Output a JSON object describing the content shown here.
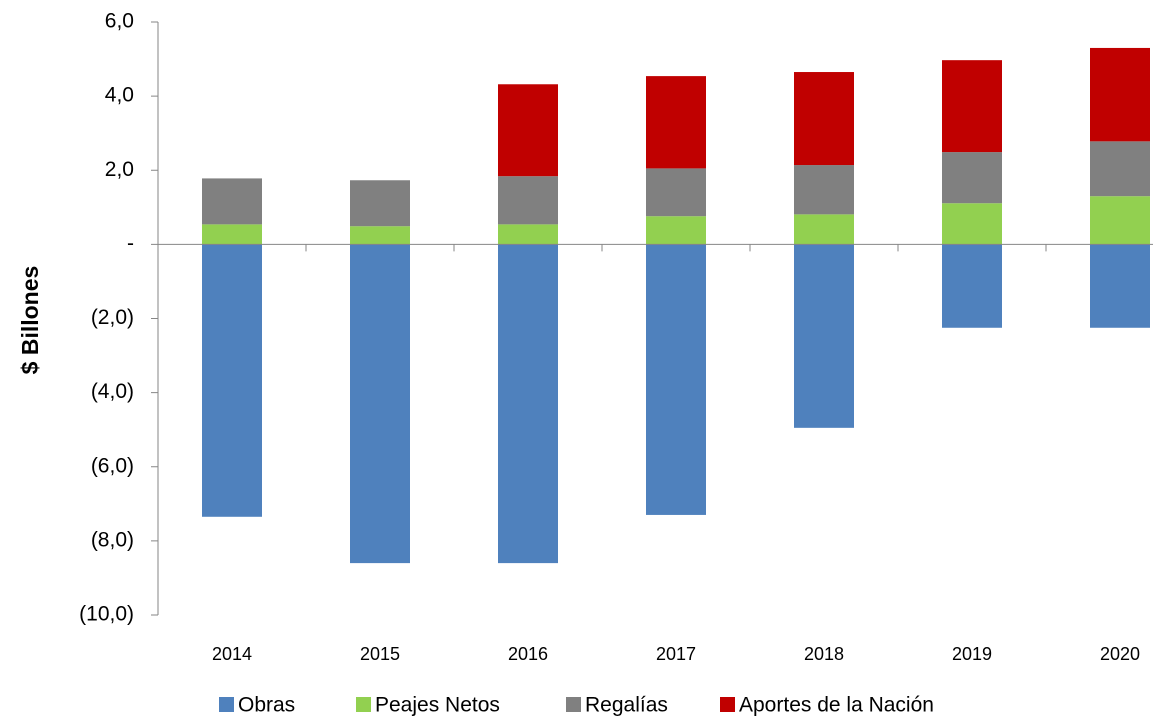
{
  "chart_data": {
    "type": "stacked_bar",
    "y_label": "$ Billones",
    "categories": [
      "2014",
      "2015",
      "2016",
      "2017",
      "2018",
      "2019",
      "2020"
    ],
    "series": [
      {
        "name": "Obras",
        "color": "#4f81bd",
        "values": [
          -7.35,
          -8.6,
          -8.6,
          -7.3,
          -4.95,
          -2.25,
          -2.25
        ]
      },
      {
        "name": "Peajes Netos",
        "color": "#92d050",
        "values": [
          0.54,
          0.49,
          0.54,
          0.76,
          0.81,
          1.11,
          1.3
        ]
      },
      {
        "name": "Regalías",
        "color": "#808080",
        "values": [
          1.24,
          1.24,
          1.3,
          1.29,
          1.33,
          1.38,
          1.48
        ]
      },
      {
        "name": "Aportes de la Nación",
        "color": "#c00000",
        "values": [
          0,
          0,
          2.48,
          2.49,
          2.51,
          2.48,
          2.52
        ]
      }
    ],
    "ylim": [
      -10,
      6
    ],
    "yticks": [
      {
        "value": -10,
        "label": "(10,0)"
      },
      {
        "value": -8,
        "label": "(8,0)"
      },
      {
        "value": -6,
        "label": "(6,0)"
      },
      {
        "value": -4,
        "label": "(4,0)"
      },
      {
        "value": -2,
        "label": "(2,0)"
      },
      {
        "value": 0,
        "label": "-"
      },
      {
        "value": 2,
        "label": "2,0"
      },
      {
        "value": 4,
        "label": "4,0"
      },
      {
        "value": 6,
        "label": "6,0"
      }
    ],
    "legend": "bottom"
  }
}
